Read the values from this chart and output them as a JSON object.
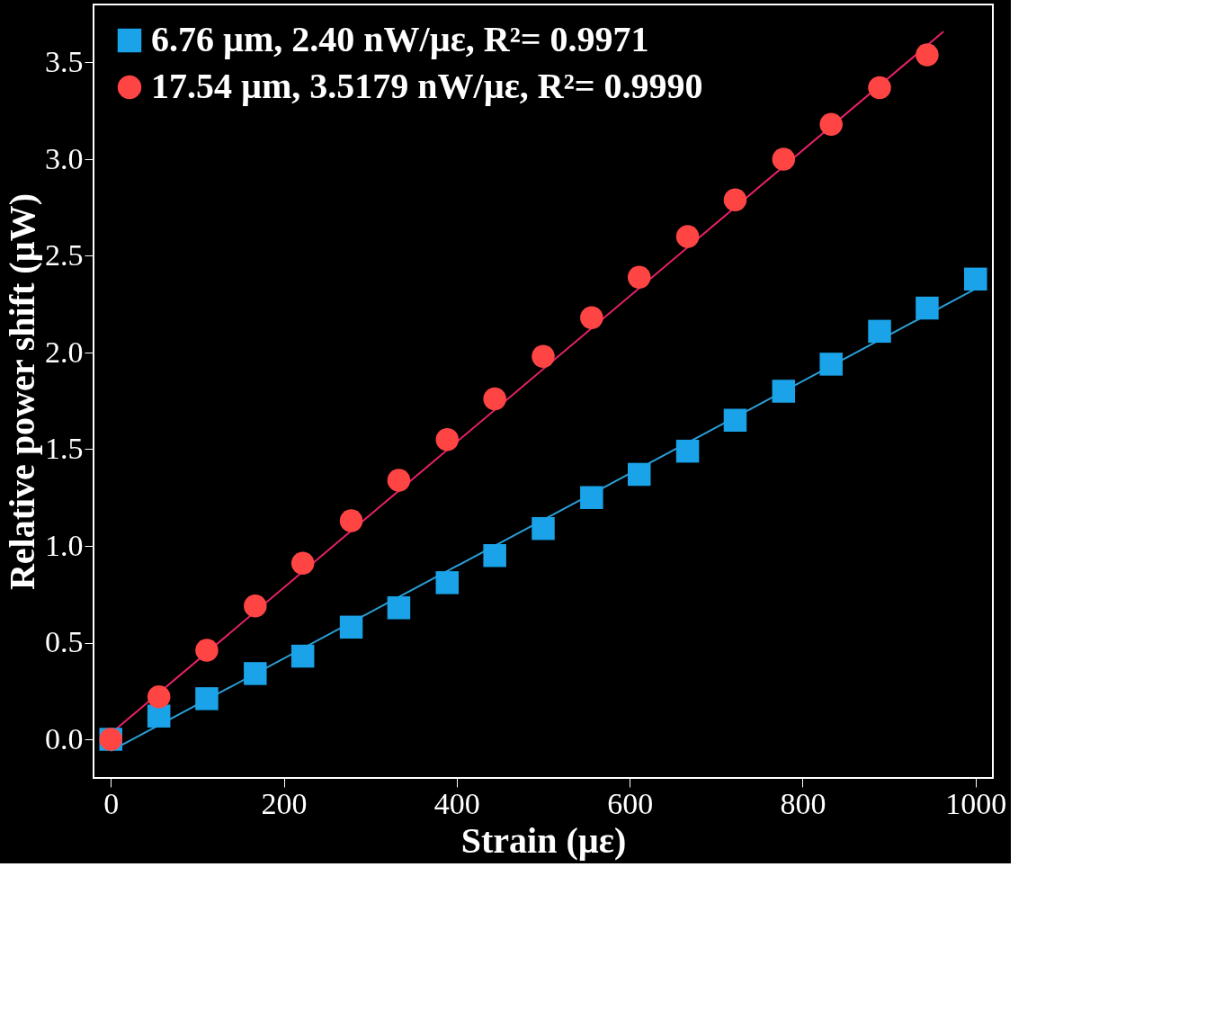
{
  "chart_data": {
    "type": "scatter",
    "xlabel": "Strain (µε)",
    "ylabel": "Relative power shift (µW)",
    "xlim": [
      -20,
      1020
    ],
    "ylim": [
      -0.2,
      3.8
    ],
    "xticks": [
      0,
      200,
      400,
      600,
      800,
      1000
    ],
    "yticks": [
      {
        "value": 0,
        "label": "0.0"
      },
      0.5,
      {
        "value": 1,
        "label": "1.0"
      },
      1.5,
      {
        "value": 2,
        "label": "2.0"
      },
      2.5,
      {
        "value": 3,
        "label": "3.0"
      },
      3.5
    ],
    "grid": false,
    "legend": "top left",
    "x": [
      0,
      55.6,
      111,
      167,
      222,
      278,
      333,
      389,
      444,
      500,
      556,
      611,
      667,
      722,
      778,
      833,
      889,
      944,
      1000
    ],
    "series": [
      {
        "name": "6.76 µm, 2.40 nW/µε, R²= 0.9971",
        "color": "#1aa3e8",
        "marker": "square",
        "values": [
          0.0,
          0.12,
          0.21,
          0.34,
          0.43,
          0.58,
          0.68,
          0.81,
          0.95,
          1.09,
          1.25,
          1.37,
          1.49,
          1.65,
          1.8,
          1.94,
          2.11,
          2.23,
          2.38
        ]
      },
      {
        "name": "17.54 µm, 3.5179 nW/µε, R²= 0.9990",
        "color": "#ff4444",
        "marker": "circle",
        "values": [
          0.0,
          0.22,
          0.46,
          0.69,
          0.91,
          1.13,
          1.34,
          1.55,
          1.76,
          1.98,
          2.18,
          2.39,
          2.6,
          2.79,
          3.0,
          3.18,
          3.37,
          3.54,
          null
        ]
      },
      {
        "type": "line",
        "color": "#2aa0d8",
        "x": [
          0,
          1000
        ],
        "values": [
          -0.06,
          2.33
        ]
      },
      {
        "type": "line",
        "color": "#e8206a",
        "x": [
          -8,
          963
        ],
        "values": [
          0.0,
          3.66
        ]
      }
    ]
  }
}
